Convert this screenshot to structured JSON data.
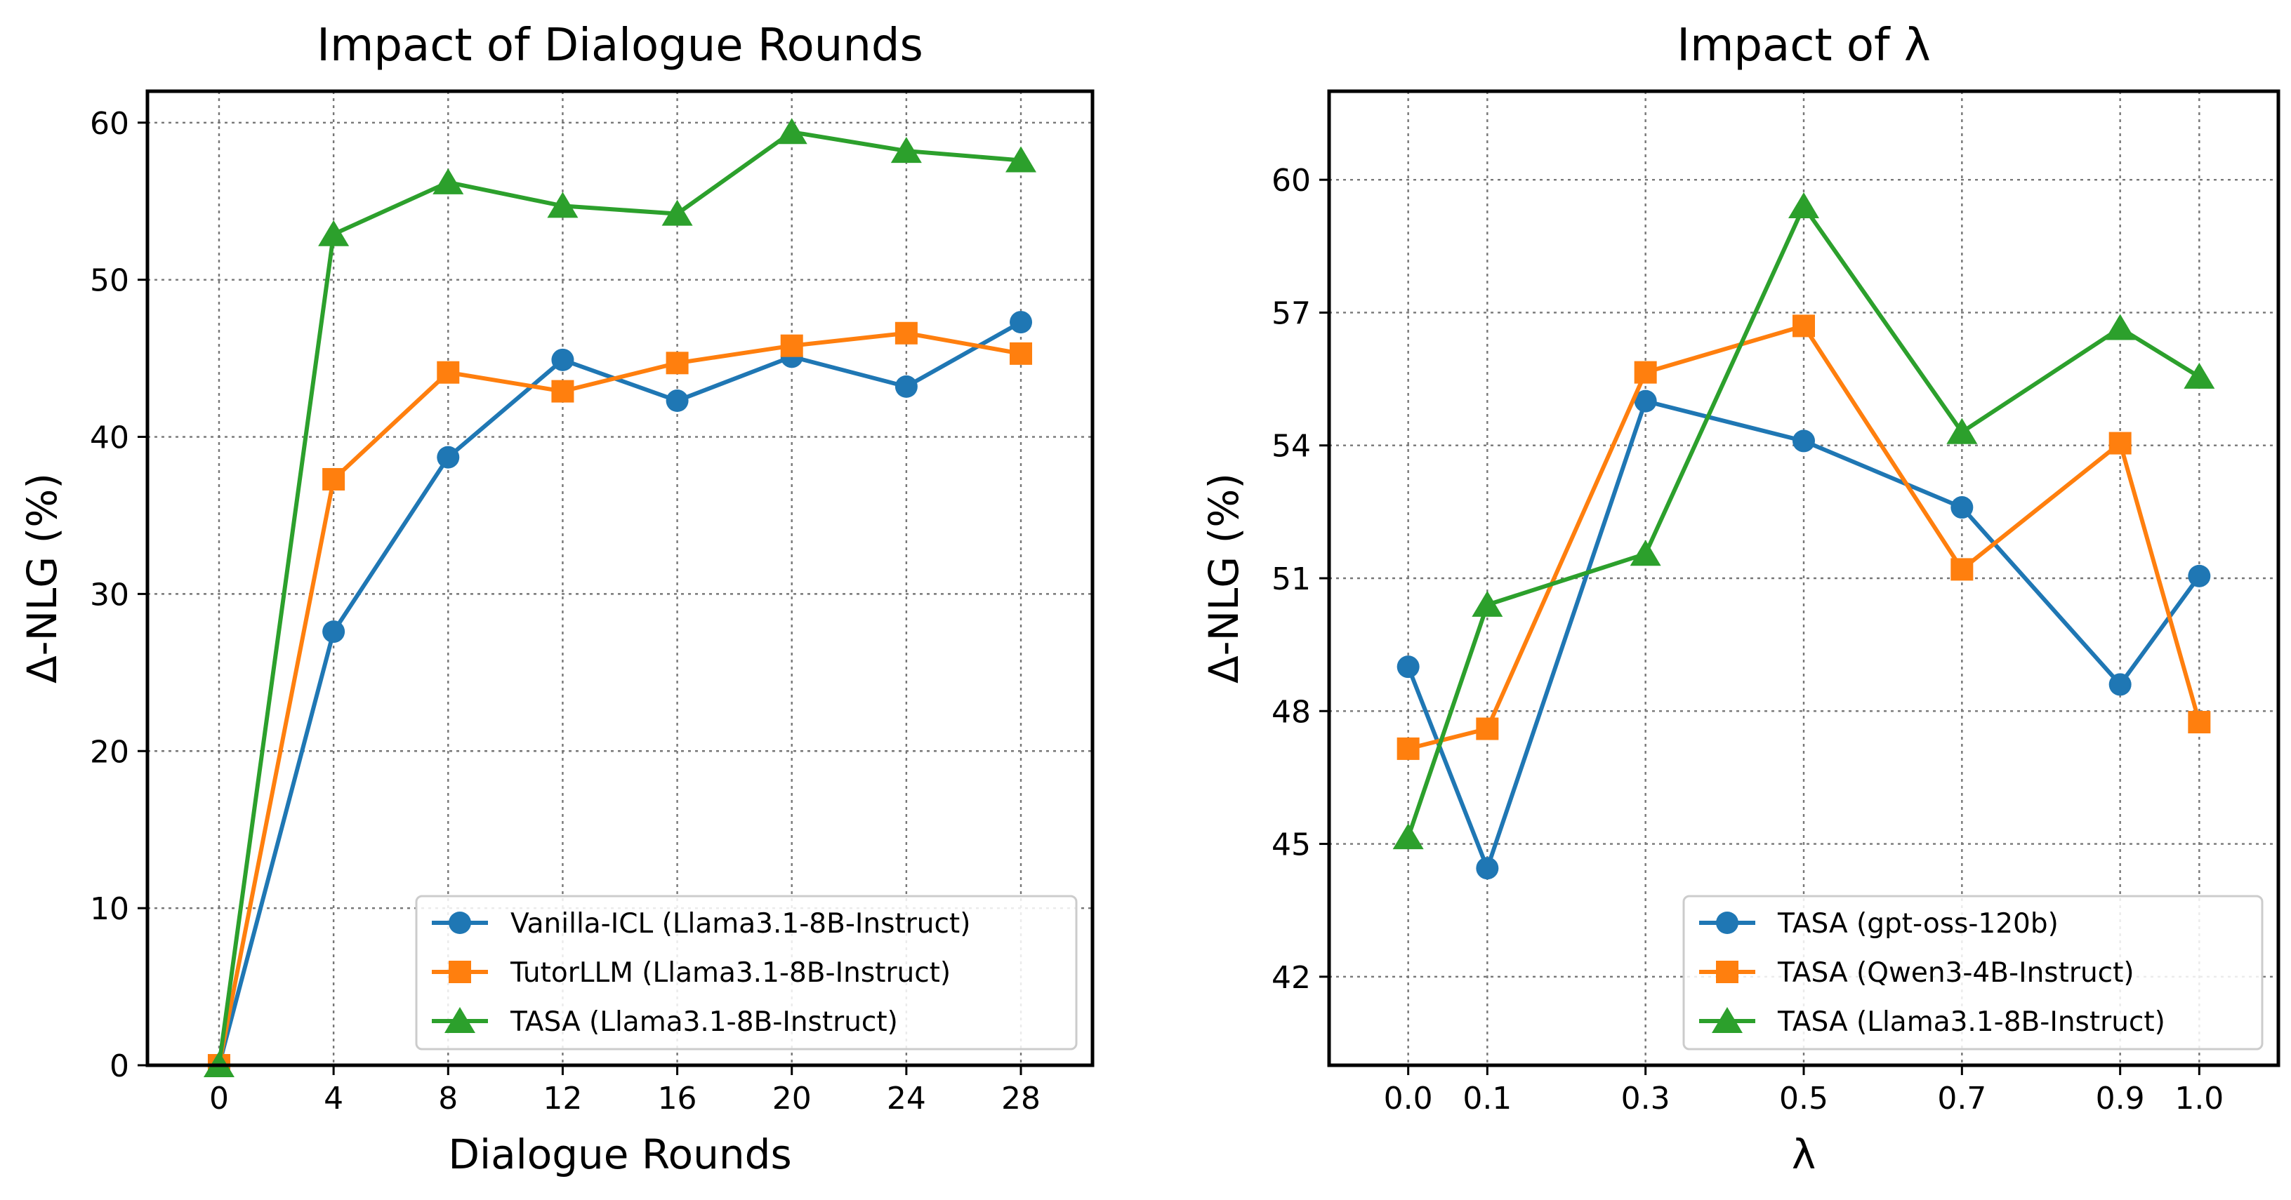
{
  "chart_data": [
    {
      "type": "line",
      "title": "Impact of Dialogue Rounds",
      "xlabel": "Dialogue Rounds",
      "ylabel": "Δ-NLG (%)",
      "x": [
        0,
        4,
        8,
        12,
        16,
        20,
        24,
        28
      ],
      "x_tick_labels": [
        "0",
        "4",
        "8",
        "12",
        "16",
        "20",
        "24",
        "28"
      ],
      "y_ticks": [
        0,
        10,
        20,
        30,
        40,
        50,
        60
      ],
      "y_tick_labels": [
        "0",
        "10",
        "20",
        "30",
        "40",
        "50",
        "60"
      ],
      "xlim": [
        -2.5,
        30.5
      ],
      "ylim": [
        0,
        62
      ],
      "grid": true,
      "legend_position": "lower-right",
      "series": [
        {
          "name": "Vanilla-ICL (Llama3.1-8B-Instruct)",
          "color": "#1f77b4",
          "marker": "circle",
          "values": [
            0,
            27.6,
            38.7,
            44.9,
            42.3,
            45.1,
            43.2,
            47.3
          ]
        },
        {
          "name": "TutorLLM (Llama3.1-8B-Instruct)",
          "color": "#ff7f0e",
          "marker": "square",
          "values": [
            0,
            37.3,
            44.1,
            42.9,
            44.7,
            45.8,
            46.6,
            45.3
          ]
        },
        {
          "name": "TASA (Llama3.1-8B-Instruct)",
          "color": "#2ca02c",
          "marker": "triangle",
          "values": [
            0,
            52.9,
            56.2,
            54.7,
            54.2,
            59.4,
            58.2,
            57.6
          ]
        }
      ]
    },
    {
      "type": "line",
      "title": "Impact of λ",
      "xlabel": "λ",
      "ylabel": "Δ-NLG (%)",
      "x": [
        0.0,
        0.1,
        0.3,
        0.5,
        0.7,
        0.9,
        1.0
      ],
      "x_tick_labels": [
        "0.0",
        "0.1",
        "0.3",
        "0.5",
        "0.7",
        "0.9",
        "1.0"
      ],
      "y_ticks": [
        42,
        45,
        48,
        51,
        54,
        57,
        60
      ],
      "y_tick_labels": [
        "42",
        "45",
        "48",
        "51",
        "54",
        "57",
        "60"
      ],
      "xlim": [
        -0.1,
        1.1
      ],
      "ylim": [
        40,
        62
      ],
      "grid": true,
      "legend_position": "lower-right",
      "series": [
        {
          "name": "TASA (gpt-oss-120b)",
          "color": "#1f77b4",
          "marker": "circle",
          "values": [
            49.0,
            44.45,
            55.0,
            54.1,
            52.6,
            48.6,
            51.05
          ]
        },
        {
          "name": "TASA (Qwen3-4B-Instruct)",
          "color": "#ff7f0e",
          "marker": "square",
          "values": [
            47.15,
            47.6,
            55.65,
            56.7,
            51.2,
            54.05,
            47.75
          ]
        },
        {
          "name": "TASA (Llama3.1-8B-Instruct)",
          "color": "#2ca02c",
          "marker": "triangle",
          "values": [
            45.15,
            50.4,
            51.55,
            59.4,
            54.3,
            56.65,
            55.55
          ]
        }
      ]
    }
  ]
}
